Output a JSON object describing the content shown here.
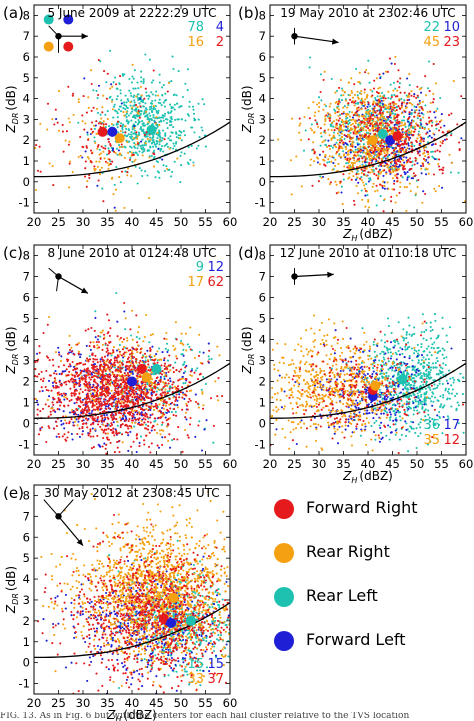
{
  "legend": [
    {
      "label": "Forward Right",
      "color": "#e41a1c"
    },
    {
      "label": "Rear Right",
      "color": "#f5a010"
    },
    {
      "label": "Rear Left",
      "color": "#1ec1b0"
    },
    {
      "label": "Forward Left",
      "color": "#1f1fd6"
    }
  ],
  "caption": "FIG. 13. As in Fig. 6 but with the centers for each hail cluster relative to the TVS location",
  "chart_data": [
    {
      "type": "scatter",
      "panel": "(a)",
      "title": "5 June 2009 at 2222:29 UTC",
      "xlabel": "Z_H (dBZ)",
      "ylabel": "Z_DR (dB)",
      "xlim": [
        20,
        60
      ],
      "ylim": [
        -1.5,
        8.5
      ],
      "xticks": [
        20,
        25,
        30,
        35,
        40,
        45,
        50,
        55,
        60
      ],
      "yticks": [
        -1,
        0,
        1,
        2,
        3,
        4,
        5,
        6,
        7,
        8
      ],
      "show_xlabel": false,
      "counts": {
        "rear_left": "78",
        "forward_left": "4",
        "rear_right": "16",
        "forward_right": "2"
      },
      "storm_motion": {
        "from": [
          25,
          7.0
        ],
        "to": [
          31,
          7.0
        ],
        "radials": [
          [
            25,
            7.0,
            23,
            7.5
          ],
          [
            25,
            7.0,
            25,
            6.2
          ]
        ]
      },
      "quadrant_dots": [
        {
          "series": "Rear Left",
          "x": 23,
          "y": 7.8
        },
        {
          "series": "Forward Left",
          "x": 27,
          "y": 7.8
        },
        {
          "series": "Rear Right",
          "x": 23,
          "y": 6.5
        },
        {
          "series": "Forward Right",
          "x": 27,
          "y": 6.5
        }
      ],
      "centers": [
        {
          "series": "Forward Right",
          "x": 34,
          "y": 2.4
        },
        {
          "series": "Forward Left",
          "x": 36,
          "y": 2.4
        },
        {
          "series": "Rear Right",
          "x": 37.5,
          "y": 2.1
        },
        {
          "series": "Rear Left",
          "x": 44,
          "y": 2.5
        }
      ],
      "scatter_clouds": [
        {
          "series": "Rear Left",
          "n": 620,
          "x_mean": 43,
          "x_sd": 4.5,
          "y_mean": 2.8,
          "y_sd": 1.1
        },
        {
          "series": "Forward Left",
          "n": 25,
          "x_mean": 35,
          "x_sd": 5,
          "y_mean": 2.3,
          "y_sd": 1.3
        },
        {
          "series": "Rear Right",
          "n": 150,
          "x_mean": 36,
          "x_sd": 6,
          "y_mean": 2.1,
          "y_sd": 1.4
        },
        {
          "series": "Forward Right",
          "n": 110,
          "x_mean": 32,
          "x_sd": 6,
          "y_mean": 2.0,
          "y_sd": 1.5
        }
      ]
    },
    {
      "type": "scatter",
      "panel": "(b)",
      "title": "19 May 2010 at 2302:46 UTC",
      "xlabel": "Z_H (dBZ)",
      "ylabel": "Z_DR (dB)",
      "xlim": [
        20,
        60
      ],
      "ylim": [
        -1.5,
        8.5
      ],
      "xticks": [
        20,
        25,
        30,
        35,
        40,
        45,
        50,
        55,
        60
      ],
      "yticks": [
        -1,
        0,
        1,
        2,
        3,
        4,
        5,
        6,
        7,
        8
      ],
      "show_xlabel": true,
      "counts": {
        "rear_left": "22",
        "forward_left": "10",
        "rear_right": "45",
        "forward_right": "23"
      },
      "storm_motion": {
        "from": [
          25,
          7.0
        ],
        "to": [
          34,
          6.7
        ],
        "radials": [
          [
            25,
            7.0,
            25,
            7.4
          ],
          [
            25,
            7.0,
            25,
            6.6
          ]
        ]
      },
      "centers": [
        {
          "series": "Rear Right",
          "x": 41,
          "y": 2.0
        },
        {
          "series": "Rear Left",
          "x": 43,
          "y": 2.3
        },
        {
          "series": "Forward Left",
          "x": 44.5,
          "y": 2.0
        },
        {
          "series": "Forward Right",
          "x": 46,
          "y": 2.2
        }
      ],
      "scatter_clouds": [
        {
          "series": "Rear Left",
          "n": 450,
          "x_mean": 42,
          "x_sd": 6,
          "y_mean": 2.3,
          "y_sd": 1.2
        },
        {
          "series": "Forward Left",
          "n": 320,
          "x_mean": 44,
          "x_sd": 5,
          "y_mean": 2.0,
          "y_sd": 1.1
        },
        {
          "series": "Rear Right",
          "n": 800,
          "x_mean": 41,
          "x_sd": 6,
          "y_mean": 2.1,
          "y_sd": 1.3
        },
        {
          "series": "Forward Right",
          "n": 480,
          "x_mean": 44,
          "x_sd": 6,
          "y_mean": 2.2,
          "y_sd": 1.3
        }
      ]
    },
    {
      "type": "scatter",
      "panel": "(c)",
      "title": "8 June 2010 at 0124:48 UTC",
      "xlabel": "Z_H (dBZ)",
      "ylabel": "Z_DR (dB)",
      "xlim": [
        20,
        60
      ],
      "ylim": [
        -1.5,
        8.5
      ],
      "xticks": [
        20,
        25,
        30,
        35,
        40,
        45,
        50,
        55,
        60
      ],
      "yticks": [
        -1,
        0,
        1,
        2,
        3,
        4,
        5,
        6,
        7,
        8
      ],
      "show_xlabel": false,
      "counts": {
        "rear_left": "9",
        "forward_left": "12",
        "rear_right": "17",
        "forward_right": "62"
      },
      "storm_motion": {
        "from": [
          25,
          7.0
        ],
        "to": [
          31,
          6.2
        ],
        "radials": [
          [
            25,
            7.0,
            23,
            7.4
          ],
          [
            25,
            7.0,
            24.6,
            6.3
          ]
        ]
      },
      "centers": [
        {
          "series": "Forward Left",
          "x": 40,
          "y": 2.0
        },
        {
          "series": "Forward Right",
          "x": 42,
          "y": 2.6
        },
        {
          "series": "Rear Right",
          "x": 43,
          "y": 2.2
        },
        {
          "series": "Rear Left",
          "x": 45,
          "y": 2.6
        }
      ],
      "scatter_clouds": [
        {
          "series": "Rear Left",
          "n": 200,
          "x_mean": 44,
          "x_sd": 6,
          "y_mean": 2.0,
          "y_sd": 1.2
        },
        {
          "series": "Forward Left",
          "n": 420,
          "x_mean": 36,
          "x_sd": 8,
          "y_mean": 1.4,
          "y_sd": 1.2
        },
        {
          "series": "Rear Right",
          "n": 380,
          "x_mean": 40,
          "x_sd": 7,
          "y_mean": 2.0,
          "y_sd": 1.3
        },
        {
          "series": "Forward Right",
          "n": 1300,
          "x_mean": 36,
          "x_sd": 8,
          "y_mean": 1.5,
          "y_sd": 1.2
        }
      ]
    },
    {
      "type": "scatter",
      "panel": "(d)",
      "title": "12 June 2010 at 0110:18 UTC",
      "xlabel": "Z_H (dBZ)",
      "ylabel": "Z_DR (dB)",
      "xlim": [
        20,
        60
      ],
      "ylim": [
        -1.5,
        8.5
      ],
      "xticks": [
        20,
        25,
        30,
        35,
        40,
        45,
        50,
        55,
        60
      ],
      "yticks": [
        -1,
        0,
        1,
        2,
        3,
        4,
        5,
        6,
        7,
        8
      ],
      "show_xlabel": true,
      "counts": {
        "rear_left": "36",
        "forward_left": "17",
        "rear_right": "35",
        "forward_right": "12"
      },
      "storm_motion": {
        "from": [
          25,
          7.0
        ],
        "to": [
          33,
          7.1
        ],
        "radials": [
          [
            25,
            7.0,
            25,
            7.4
          ],
          [
            25,
            7.0,
            25,
            6.6
          ]
        ]
      },
      "centers": [
        {
          "series": "Forward Left",
          "x": 41,
          "y": 1.3
        },
        {
          "series": "Forward Right",
          "x": 41,
          "y": 1.6
        },
        {
          "series": "Rear Right",
          "x": 41.5,
          "y": 1.8
        },
        {
          "series": "Rear Left",
          "x": 47,
          "y": 2.1
        }
      ],
      "scatter_clouds": [
        {
          "series": "Rear Left",
          "n": 700,
          "x_mean": 49,
          "x_sd": 5,
          "y_mean": 2.0,
          "y_sd": 1.2
        },
        {
          "series": "Forward Left",
          "n": 300,
          "x_mean": 40,
          "x_sd": 6,
          "y_mean": 1.4,
          "y_sd": 1.1
        },
        {
          "series": "Rear Right",
          "n": 650,
          "x_mean": 33,
          "x_sd": 7,
          "y_mean": 1.7,
          "y_sd": 1.2
        },
        {
          "series": "Forward Right",
          "n": 220,
          "x_mean": 38,
          "x_sd": 7,
          "y_mean": 1.5,
          "y_sd": 1.2
        }
      ]
    },
    {
      "type": "scatter",
      "panel": "(e)",
      "title": "30 May 2012 at 2308:45 UTC",
      "xlabel": "Z_H (dBZ)",
      "ylabel": "Z_DR (dB)",
      "xlim": [
        20,
        60
      ],
      "ylim": [
        -1.5,
        8.5
      ],
      "xticks": [
        20,
        25,
        30,
        35,
        40,
        45,
        50,
        55,
        60
      ],
      "yticks": [
        -1,
        0,
        1,
        2,
        3,
        4,
        5,
        6,
        7,
        8
      ],
      "show_xlabel": true,
      "counts": {
        "rear_left": "15",
        "forward_left": "15",
        "rear_right": "33",
        "forward_right": "37"
      },
      "storm_motion": {
        "from": [
          25,
          7.0
        ],
        "to": [
          30,
          5.6
        ],
        "radials": [
          [
            25,
            7.0,
            22,
            7.8
          ],
          [
            25,
            7.0,
            28,
            7.8
          ]
        ]
      },
      "centers": [
        {
          "series": "Forward Right",
          "x": 46.5,
          "y": 2.1
        },
        {
          "series": "Forward Left",
          "x": 48,
          "y": 1.9
        },
        {
          "series": "Rear Right",
          "x": 48.5,
          "y": 3.1
        },
        {
          "series": "Rear Left",
          "x": 52,
          "y": 2.0
        }
      ],
      "scatter_clouds": [
        {
          "series": "Rear Left",
          "n": 500,
          "x_mean": 50,
          "x_sd": 5,
          "y_mean": 2.0,
          "y_sd": 1.2
        },
        {
          "series": "Forward Left",
          "n": 450,
          "x_mean": 42,
          "x_sd": 7,
          "y_mean": 1.9,
          "y_sd": 1.2
        },
        {
          "series": "Rear Right",
          "n": 1600,
          "x_mean": 45,
          "x_sd": 8,
          "y_mean": 3.2,
          "y_sd": 1.6
        },
        {
          "series": "Forward Right",
          "n": 900,
          "x_mean": 44,
          "x_sd": 8,
          "y_mean": 2.3,
          "y_sd": 1.5
        }
      ]
    }
  ]
}
